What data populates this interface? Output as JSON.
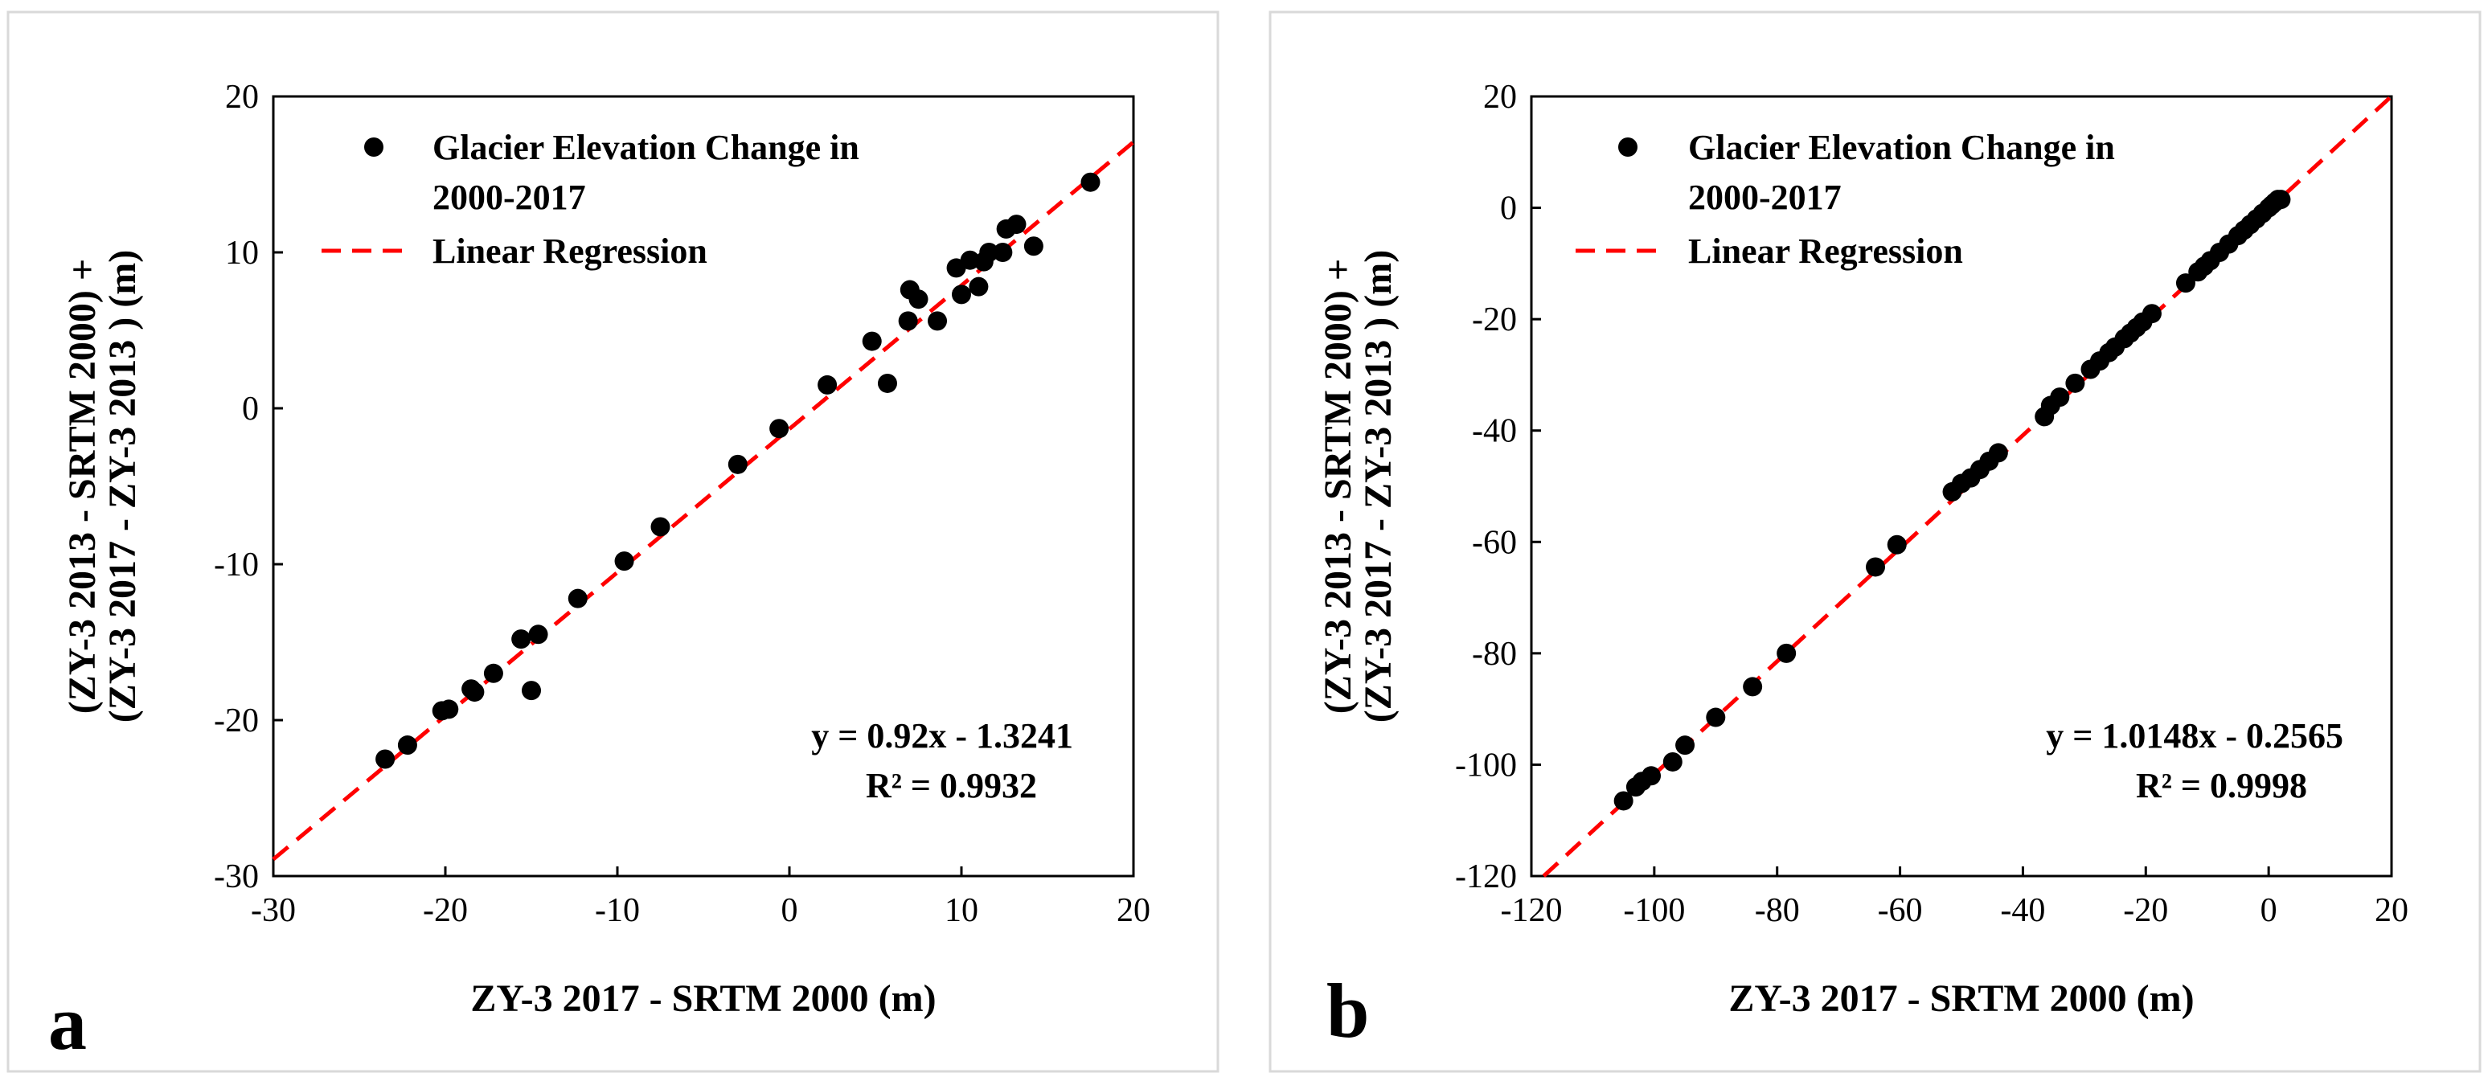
{
  "chart_data": [
    {
      "panel_label": "a",
      "type": "scatter",
      "xlabel": "ZY-3  2017 - SRTM 2000 (m)",
      "ylabel_line1": "(ZY-3  2013 - SRTM 2000) +",
      "ylabel_line2": "(ZY-3  2017 - ZY-3  2013 ) (m)",
      "xlim": [
        -30,
        20
      ],
      "ylim": [
        -30,
        20
      ],
      "xticks": [
        -30,
        -20,
        -10,
        0,
        10,
        20
      ],
      "yticks": [
        -30,
        -20,
        -10,
        0,
        10,
        20
      ],
      "legend": {
        "position": "top-left",
        "points_label_line1": "Glacier Elevation Change in",
        "points_label_line2": "2000-2017",
        "line_label": "Linear Regression"
      },
      "equation": "y = 0.92x - 1.3241",
      "r_squared": "R² = 0.9932",
      "regression": {
        "slope": 0.92,
        "intercept": -1.3241
      },
      "series": [
        {
          "name": "Glacier Elevation Change in 2000-2017",
          "points": [
            [
              -23.5,
              -22.5
            ],
            [
              -22.2,
              -21.6
            ],
            [
              -20.2,
              -19.4
            ],
            [
              -19.8,
              -19.3
            ],
            [
              -18.5,
              -18.0
            ],
            [
              -18.3,
              -18.2
            ],
            [
              -17.2,
              -17.0
            ],
            [
              -15.6,
              -14.8
            ],
            [
              -15.0,
              -18.1
            ],
            [
              -14.6,
              -14.5
            ],
            [
              -12.3,
              -12.2
            ],
            [
              -9.6,
              -9.8
            ],
            [
              -7.5,
              -7.6
            ],
            [
              -3.0,
              -3.6
            ],
            [
              -0.6,
              -1.3
            ],
            [
              2.2,
              1.5
            ],
            [
              4.8,
              4.3
            ],
            [
              5.7,
              1.6
            ],
            [
              6.9,
              5.6
            ],
            [
              7.0,
              7.6
            ],
            [
              7.5,
              7.0
            ],
            [
              8.6,
              5.6
            ],
            [
              9.7,
              9.0
            ],
            [
              10.0,
              7.3
            ],
            [
              10.5,
              9.5
            ],
            [
              11.0,
              7.8
            ],
            [
              11.3,
              9.4
            ],
            [
              11.6,
              10.0
            ],
            [
              12.4,
              10.0
            ],
            [
              12.6,
              11.5
            ],
            [
              13.2,
              11.8
            ],
            [
              14.2,
              10.4
            ],
            [
              17.5,
              14.5
            ]
          ]
        }
      ]
    },
    {
      "panel_label": "b",
      "type": "scatter",
      "xlabel": "ZY-3  2017 - SRTM 2000 (m)",
      "ylabel_line1": "(ZY-3  2013 - SRTM 2000) +",
      "ylabel_line2": "(ZY-3  2017 - ZY-3  2013 ) (m)",
      "xlim": [
        -120,
        20
      ],
      "ylim": [
        -120,
        20
      ],
      "xticks": [
        -120,
        -100,
        -80,
        -60,
        -40,
        -20,
        0,
        20
      ],
      "yticks": [
        -120,
        -100,
        -80,
        -60,
        -40,
        -20,
        0,
        20
      ],
      "legend": {
        "position": "top-left",
        "points_label_line1": "Glacier Elevation Change in",
        "points_label_line2": "2000-2017",
        "line_label": "Linear Regression"
      },
      "equation": "y = 1.0148x - 0.2565",
      "r_squared": "R² = 0.9998",
      "regression": {
        "slope": 1.0148,
        "intercept": -0.2565
      },
      "series": [
        {
          "name": "Glacier Elevation Change in 2000-2017",
          "points": [
            [
              -105,
              -106.5
            ],
            [
              -103,
              -104
            ],
            [
              -102,
              -103
            ],
            [
              -100.5,
              -102
            ],
            [
              -97,
              -99.5
            ],
            [
              -95,
              -96.5
            ],
            [
              -90,
              -91.5
            ],
            [
              -84,
              -86
            ],
            [
              -78.5,
              -80
            ],
            [
              -64,
              -64.5
            ],
            [
              -60.5,
              -60.5
            ],
            [
              -51.5,
              -51
            ],
            [
              -50,
              -49.5
            ],
            [
              -48.5,
              -48.5
            ],
            [
              -47,
              -47
            ],
            [
              -45.5,
              -45.5
            ],
            [
              -44,
              -44
            ],
            [
              -36.5,
              -37.5
            ],
            [
              -35.5,
              -35.5
            ],
            [
              -34,
              -34
            ],
            [
              -31.5,
              -31.5
            ],
            [
              -29,
              -29
            ],
            [
              -27.5,
              -27.5
            ],
            [
              -26,
              -26
            ],
            [
              -25,
              -25
            ],
            [
              -23.5,
              -23.5
            ],
            [
              -22.5,
              -22.5
            ],
            [
              -21.5,
              -21.5
            ],
            [
              -20.5,
              -20.5
            ],
            [
              -19,
              -19
            ],
            [
              -13.5,
              -13.5
            ],
            [
              -11.5,
              -11.5
            ],
            [
              -10.5,
              -10.5
            ],
            [
              -9.5,
              -9.5
            ],
            [
              -8,
              -8
            ],
            [
              -6.5,
              -6.5
            ],
            [
              -5,
              -5
            ],
            [
              -4,
              -4
            ],
            [
              -3,
              -3
            ],
            [
              -2,
              -2
            ],
            [
              -1,
              -1
            ],
            [
              0,
              0
            ],
            [
              0.5,
              0.5
            ],
            [
              1,
              1
            ],
            [
              1.5,
              1.5
            ],
            [
              2,
              1.5
            ]
          ]
        }
      ]
    }
  ]
}
